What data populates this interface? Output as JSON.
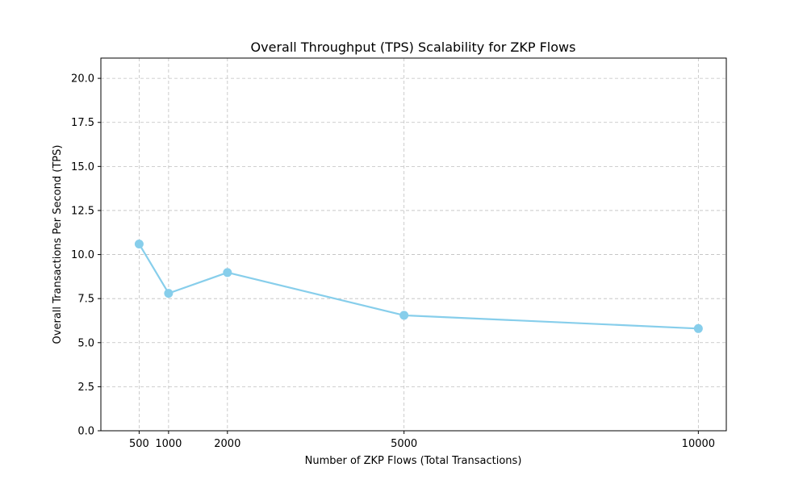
{
  "chart_data": {
    "type": "line",
    "title": "Overall Throughput (TPS) Scalability for ZKP Flows",
    "xlabel": "Number of ZKP Flows (Total Transactions)",
    "ylabel": "Overall Transactions Per Second (TPS)",
    "x": [
      500,
      1000,
      2000,
      5000,
      10000
    ],
    "xticks": [
      500,
      1000,
      2000,
      5000,
      10000
    ],
    "xlim": [
      -150,
      10475
    ],
    "ylim": [
      0,
      21.15
    ],
    "yticks": [
      0.0,
      2.5,
      5.0,
      7.5,
      10.0,
      12.5,
      15.0,
      17.5,
      20.0
    ],
    "grid": true,
    "series": [
      {
        "values": [
          10.6,
          7.8,
          8.98,
          6.55,
          5.8
        ],
        "color": "#87ceeb"
      }
    ]
  }
}
